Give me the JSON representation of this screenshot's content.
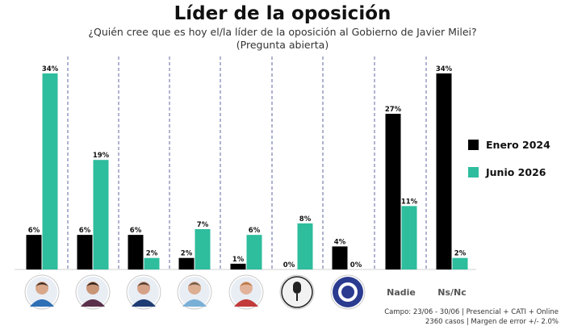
{
  "header": {
    "title": "Líder de la oposición",
    "subtitle_line1": "¿Quién cree que es hoy el/la líder de la oposición al Gobierno de Javier Milei?",
    "subtitle_line2": "(Pregunta abierta)"
  },
  "legend": {
    "series_a": "Enero 2024",
    "series_b": "Junio 2026"
  },
  "footer": {
    "line1": "Campo: 23/06 - 30/06 | Presencial + CATI +  Online",
    "line2": "2360 casos | Margen de error +/- 2.0%"
  },
  "colors": {
    "series_a": "#000000",
    "series_b": "#2ebd9d",
    "divider": "#7a80b0"
  },
  "chart_data": {
    "type": "bar",
    "title": "Líder de la oposición",
    "categories": [
      "",
      "",
      "",
      "",
      "",
      "",
      "",
      "Nadie",
      "Ns/Nc"
    ],
    "category_icons": [
      "person-photo-1-icon",
      "person-photo-2-icon",
      "person-photo-3-icon",
      "person-photo-4-icon",
      "person-photo-5-icon",
      "microphone-logo-icon",
      "cgt-logo-icon",
      "",
      ""
    ],
    "series": [
      {
        "name": "Enero 2024",
        "values": [
          6,
          6,
          6,
          2,
          1,
          0,
          4,
          27,
          34
        ],
        "labels": [
          "6%",
          "6%",
          "6%",
          "2%",
          "1%",
          "0%",
          "4%",
          "27%",
          "34%"
        ]
      },
      {
        "name": "Junio 2026",
        "values": [
          34,
          19,
          2,
          7,
          6,
          8,
          0,
          11,
          2
        ],
        "labels": [
          "34%",
          "19%",
          "2%",
          "7%",
          "6%",
          "8%",
          "0%",
          "11%",
          "2%"
        ]
      }
    ],
    "ylim": [
      0,
      34
    ],
    "legend_position": "right",
    "grid": false
  }
}
